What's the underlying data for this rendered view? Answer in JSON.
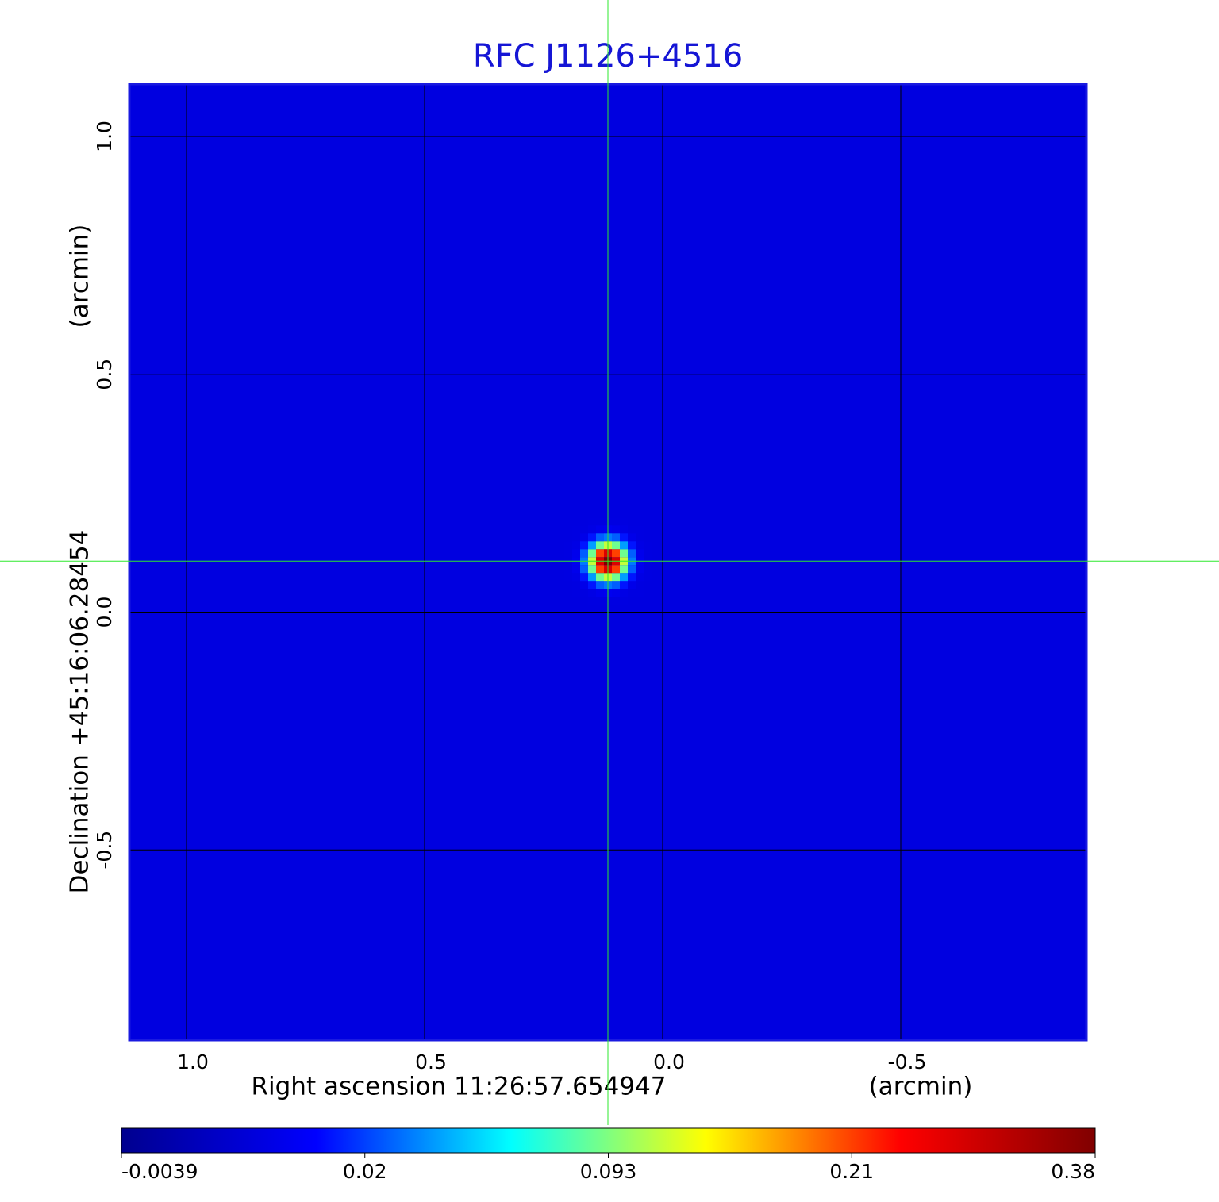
{
  "chart_data": {
    "type": "image",
    "title": "RFC J1126+4516",
    "xlabel": "Right ascension  11:26:57.654947",
    "xunit": "(arcmin)",
    "ylabel": "Declination  +45:16:06.28454",
    "yunit": "(arcmin)",
    "xlim": [
      1.12,
      -0.89
    ],
    "ylim": [
      -0.9,
      1.11
    ],
    "xticks": [
      {
        "value": 1,
        "label": "1.0"
      },
      0.5,
      {
        "value": 0,
        "label": "0.0"
      },
      -0.5
    ],
    "yticks": [
      -0.5,
      {
        "value": 0,
        "label": "0.0"
      },
      0.5,
      {
        "value": 1,
        "label": "1.0"
      }
    ],
    "grid": true,
    "background": 0.01,
    "source": {
      "x": 0.115,
      "y": 0.107,
      "peak": 0.38,
      "fwhm": 0.05
    },
    "colormap": [
      "#00008f",
      "#0000ff",
      "#00ffff",
      "#ffff00",
      "#ff0000",
      "#800000"
    ],
    "colorbar_ticks": [
      -0.0039,
      0.02,
      0.093,
      0.21,
      0.38
    ],
    "crosshair_color": "#2ee82e"
  }
}
